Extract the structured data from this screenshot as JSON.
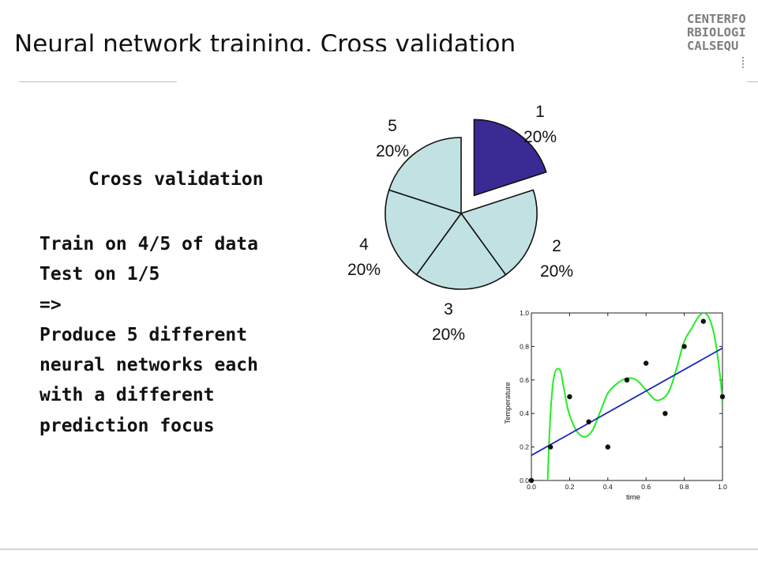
{
  "slide": {
    "title": "Neural network training. Cross validation",
    "logo_lines": [
      "CENTERFO",
      "RBIOLOGI",
      "CALSEQU"
    ]
  },
  "text": {
    "heading": "Cross validation",
    "lines": [
      "Train on 4/5 of data",
      "Test on 1/5",
      "=>",
      "Produce 5 different",
      "neural networks each",
      "with a different",
      "prediction focus"
    ]
  },
  "colors": {
    "highlight_slice": "#3a2b94",
    "other_slices": "#c2e1e3",
    "fit_curve": "#22ee22",
    "regression_line": "#1a2ab8",
    "points": "#111111"
  },
  "chart_data": [
    {
      "type": "pie",
      "title": "",
      "labels": [
        "1",
        "2",
        "3",
        "4",
        "5"
      ],
      "values": [
        20,
        20,
        20,
        20,
        20
      ],
      "display": [
        "20%",
        "20%",
        "20%",
        "20%",
        "20%"
      ],
      "exploded": [
        "1"
      ],
      "highlight": "1"
    },
    {
      "type": "scatter",
      "title": "",
      "xlabel": "time",
      "ylabel": "Temperature",
      "xlim": [
        0.0,
        1.0
      ],
      "ylim": [
        0.0,
        1.0
      ],
      "xticks": [
        "0.0",
        "0.2",
        "0.4",
        "0.6",
        "0.8",
        "1.0"
      ],
      "yticks": [
        "0.0",
        "0.2",
        "0.4",
        "0.6",
        "0.8",
        "1.0"
      ],
      "points": {
        "x": [
          0.0,
          0.1,
          0.2,
          0.3,
          0.4,
          0.5,
          0.6,
          0.7,
          0.8,
          0.9,
          1.0
        ],
        "y": [
          0.0,
          0.2,
          0.5,
          0.35,
          0.2,
          0.6,
          0.7,
          0.4,
          0.8,
          0.95,
          0.5
        ]
      },
      "regression_line": {
        "x": [
          0.0,
          1.0
        ],
        "y": [
          0.15,
          0.79
        ]
      },
      "fit_curve": {
        "x": [
          0.085,
          0.1,
          0.12,
          0.15,
          0.17,
          0.19,
          0.21,
          0.24,
          0.28,
          0.32,
          0.36,
          0.4,
          0.45,
          0.5,
          0.55,
          0.6,
          0.65,
          0.7,
          0.73,
          0.76,
          0.8,
          0.84,
          0.87,
          0.9,
          0.93,
          0.96,
          0.99,
          1.0
        ],
        "y": [
          0.0,
          0.4,
          0.63,
          0.66,
          0.55,
          0.43,
          0.36,
          0.29,
          0.26,
          0.3,
          0.41,
          0.52,
          0.58,
          0.61,
          0.6,
          0.54,
          0.48,
          0.5,
          0.56,
          0.67,
          0.83,
          0.91,
          0.97,
          1.0,
          0.97,
          0.85,
          0.6,
          0.45
        ]
      }
    }
  ]
}
